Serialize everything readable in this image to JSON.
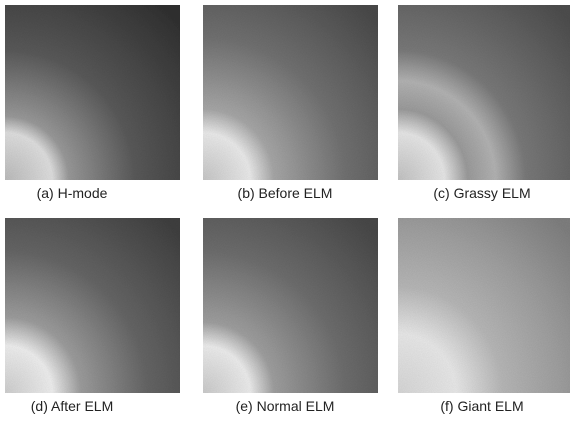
{
  "panels": [
    {
      "caption": "(a) H-mode"
    },
    {
      "caption": "(b) Before ELM"
    },
    {
      "caption": "(c) Grassy ELM"
    },
    {
      "caption": "(d) After ELM"
    },
    {
      "caption": "(e) Normal ELM"
    },
    {
      "caption": "(f) Giant ELM"
    }
  ]
}
